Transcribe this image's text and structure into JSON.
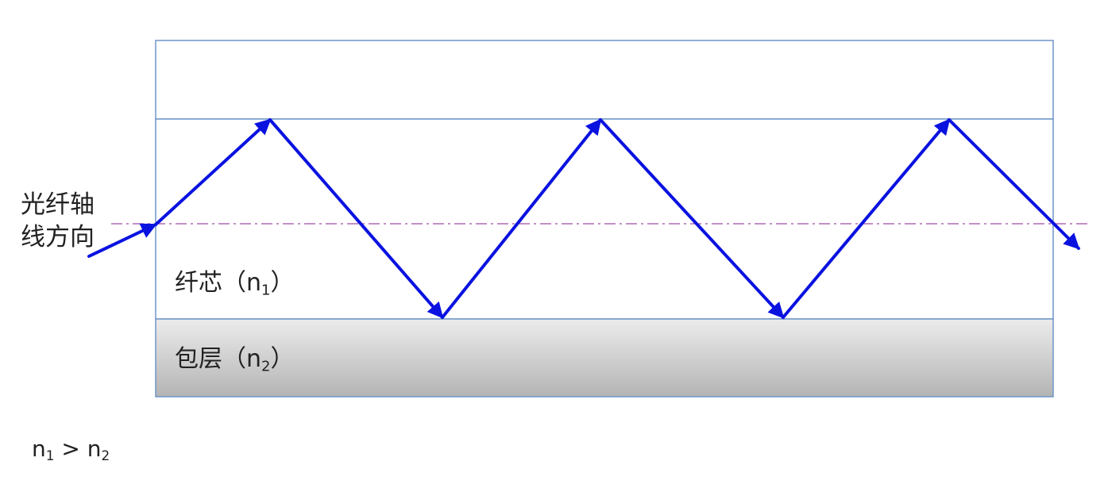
{
  "diagram": {
    "axis_label": {
      "line1": "光纤轴",
      "line2": "线方向"
    },
    "core_label": {
      "text": "纤芯（n",
      "sub": "1",
      "close": "）"
    },
    "cladding_label": {
      "text": "包层（n",
      "sub": "2",
      "close": "）"
    },
    "relation": {
      "left": "n",
      "left_sub": "1",
      "op": " > ",
      "right": "n",
      "right_sub": "2"
    }
  },
  "colors": {
    "ray": "#0a12e0",
    "axis_line": "#a04aa8",
    "fiber_border": "#6f95c8",
    "cladding_top": "#ececec",
    "cladding_bottom": "#b4b4b4",
    "text": "#222222"
  }
}
